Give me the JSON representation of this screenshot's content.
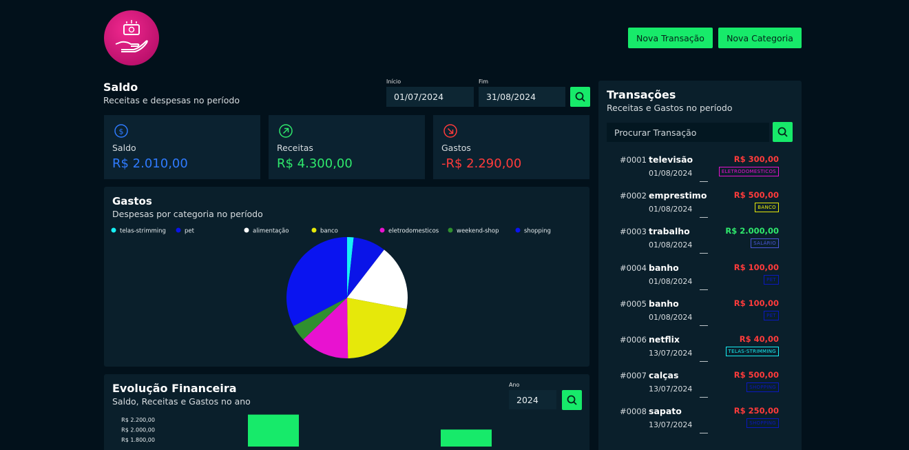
{
  "header": {
    "buttons": [
      "Nova Transação",
      "Nova Categoria"
    ]
  },
  "saldo": {
    "title": "Saldo",
    "subtitle": "Receitas e despesas no período",
    "start_label": "Início",
    "start": "01/07/2024",
    "end_label": "Fim",
    "end": "31/08/2024",
    "cards": [
      {
        "label": "Saldo",
        "value": "R$ 2.010,00",
        "color": "#2f7bff"
      },
      {
        "label": "Receitas",
        "value": "R$ 4.300,00",
        "color": "#2fe86c"
      },
      {
        "label": "Gastos",
        "value": "-R$ 2.290,00",
        "color": "#ff3b3b"
      }
    ]
  },
  "gastos": {
    "title": "Gastos",
    "subtitle": "Despesas por categoria no período",
    "chart": {
      "type": "pie",
      "categories": [
        "telas-strimming",
        "pet",
        "alimentação",
        "banco",
        "eletrodomesticos",
        "weekend-shop",
        "shopping"
      ],
      "values": [
        40,
        200,
        400,
        500,
        300,
        100,
        750
      ],
      "colors": [
        "#17f0f5",
        "#0a14e8",
        "#ffffff",
        "#e6e80a",
        "#e812d0",
        "#2f8f2f",
        "#0a14f0"
      ]
    }
  },
  "evolucao": {
    "title": "Evolução Financeira",
    "subtitle": "Saldo, Receitas e Gastos no ano",
    "year_label": "Ano",
    "year": "2024",
    "chart": {
      "type": "bar",
      "values": [
        2300,
        2000
      ],
      "color": "#17ea6a",
      "ylim": [
        1700,
        2350
      ],
      "yticks": [
        {
          "value": 1800,
          "label": "R$ 1.800,00"
        },
        {
          "value": 2000,
          "label": "R$ 2.000,00"
        },
        {
          "value": 2200,
          "label": "R$ 2.200,00"
        }
      ]
    }
  },
  "transacoes": {
    "title": "Transações",
    "subtitle": "Receitas e Gastos no período",
    "search_placeholder": "Procurar Transação",
    "items": [
      {
        "id": "#0001",
        "name": "televisão",
        "date": "01/08/2024",
        "amount": "R$ 300,00",
        "color": "#ff3b3b",
        "category": "ELETRODOMESTICOS",
        "category_color": "#e812d0"
      },
      {
        "id": "#0002",
        "name": "emprestimo",
        "date": "01/08/2024",
        "amount": "R$ 500,00",
        "color": "#ff3b3b",
        "category": "BANCO",
        "category_color": "#e6e80a"
      },
      {
        "id": "#0003",
        "name": "trabalho",
        "date": "01/08/2024",
        "amount": "R$ 2.000,00",
        "color": "#2fe86c",
        "category": "SALÁRIO",
        "category_color": "#4a56d8"
      },
      {
        "id": "#0004",
        "name": "banho",
        "date": "01/08/2024",
        "amount": "R$ 100,00",
        "color": "#ff3b3b",
        "category": "PET",
        "category_color": "#0a18c0"
      },
      {
        "id": "#0005",
        "name": "banho",
        "date": "01/08/2024",
        "amount": "R$ 100,00",
        "color": "#ff3b3b",
        "category": "PET",
        "category_color": "#0a18c0"
      },
      {
        "id": "#0006",
        "name": "netflix",
        "date": "13/07/2024",
        "amount": "R$ 40,00",
        "color": "#ff3b3b",
        "category": "TELAS-STRIMMING",
        "category_color": "#17f0f5"
      },
      {
        "id": "#0007",
        "name": "calças",
        "date": "13/07/2024",
        "amount": "R$ 500,00",
        "color": "#ff3b3b",
        "category": "SHOPPING",
        "category_color": "#0a18c0"
      },
      {
        "id": "#0008",
        "name": "sapato",
        "date": "13/07/2024",
        "amount": "R$ 250,00",
        "color": "#ff3b3b",
        "category": "SHOPPING",
        "category_color": "#0a18c0"
      }
    ]
  }
}
